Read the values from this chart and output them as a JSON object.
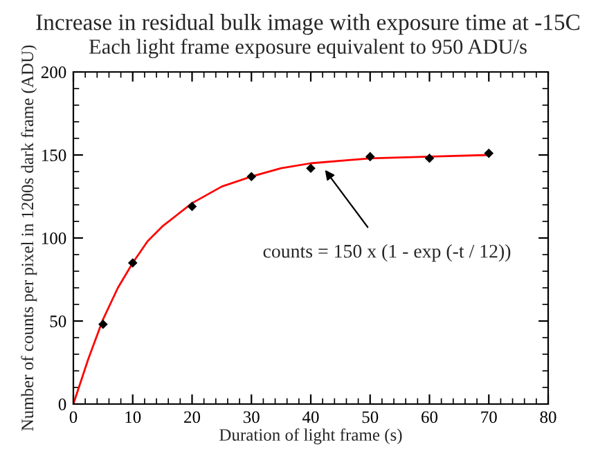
{
  "chart_data": {
    "type": "scatter",
    "title": "Increase in residual bulk image with exposure time at -15C",
    "subtitle": "Each light frame exposure equivalent to 950 ADU/s",
    "xlabel": "Duration of light frame (s)",
    "ylabel": "Number of counts per pixel in 1200s dark frame (ADU)",
    "xlim": [
      0,
      80
    ],
    "ylim": [
      0,
      200
    ],
    "xticks": [
      0,
      10,
      20,
      30,
      40,
      50,
      60,
      70,
      80
    ],
    "yticks": [
      0,
      50,
      100,
      150,
      200
    ],
    "grid": false,
    "series": [
      {
        "color": "#000000",
        "marker": "diamond",
        "x": [
          5,
          10,
          20,
          30,
          40,
          50,
          60,
          70
        ],
        "values": [
          48,
          85,
          119,
          137,
          142,
          149,
          148,
          151
        ]
      },
      {
        "type": "line",
        "color": "#ff0000",
        "x": [
          0,
          2.5,
          5,
          7.5,
          10,
          12.5,
          15,
          20,
          25,
          30,
          35,
          40,
          50,
          60,
          70
        ],
        "values": [
          0,
          27,
          51,
          70,
          85,
          98,
          107,
          121,
          131,
          137,
          142,
          145,
          148,
          149,
          150
        ]
      }
    ],
    "annotations": [
      {
        "text": "counts = 150 x (1 - exp (-t / 12))",
        "x": 42.4,
        "y": 141
      }
    ]
  }
}
